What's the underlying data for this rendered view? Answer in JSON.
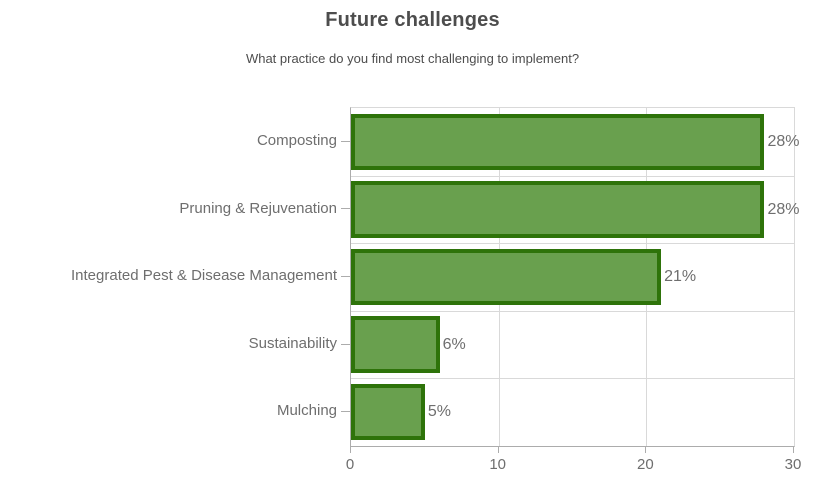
{
  "chart_data": {
    "type": "bar",
    "orientation": "horizontal",
    "title": "Future challenges",
    "subtitle": "What practice do you find most challenging to implement?",
    "categories": [
      "Composting",
      "Pruning & Rejuvenation",
      "Integrated Pest & Disease Management",
      "Sustainability",
      "Mulching"
    ],
    "values": [
      28,
      28,
      21,
      6,
      5
    ],
    "value_labels": [
      "28%",
      "28%",
      "21%",
      "6%",
      "5%"
    ],
    "x_ticks": [
      0,
      10,
      20,
      30
    ],
    "xlim": [
      0,
      30
    ],
    "grid": true,
    "legend": "none",
    "colors": {
      "bar_fill": "#69A04E",
      "bar_stroke": "#2E730A",
      "gridline": "#D9D9D9",
      "axis": "#ACACAC",
      "text": "#6E6E6E",
      "title_text": "#4D4D4D"
    }
  }
}
